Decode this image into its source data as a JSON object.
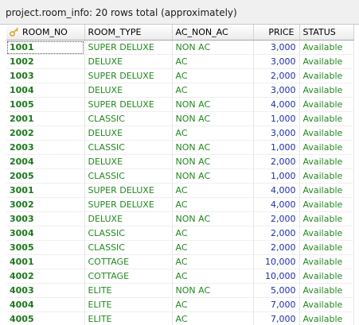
{
  "window": {
    "title": "project.room_info: 20 rows total (approximately)"
  },
  "grid": {
    "columns": [
      {
        "key": "room_no",
        "label": "ROOM_NO",
        "icon": "key-icon"
      },
      {
        "key": "room_type",
        "label": "ROOM_TYPE"
      },
      {
        "key": "ac_non_ac",
        "label": "AC_NON_AC"
      },
      {
        "key": "price",
        "label": "PRICE"
      },
      {
        "key": "status",
        "label": "STATUS"
      }
    ],
    "rows": [
      {
        "room_no": "1001",
        "room_type": "SUPER DELUXE",
        "ac_non_ac": "NON AC",
        "price": "3,000",
        "status": "Available"
      },
      {
        "room_no": "1002",
        "room_type": "DELUXE",
        "ac_non_ac": "AC",
        "price": "3,000",
        "status": "Available"
      },
      {
        "room_no": "1003",
        "room_type": "SUPER DELUXE",
        "ac_non_ac": "AC",
        "price": "2,000",
        "status": "Available"
      },
      {
        "room_no": "1004",
        "room_type": "DELUXE",
        "ac_non_ac": "AC",
        "price": "3,000",
        "status": "Available"
      },
      {
        "room_no": "1005",
        "room_type": "SUPER DELUXE",
        "ac_non_ac": "NON AC",
        "price": "4,000",
        "status": "Available"
      },
      {
        "room_no": "2001",
        "room_type": "CLASSIC",
        "ac_non_ac": "NON AC",
        "price": "1,000",
        "status": "Available"
      },
      {
        "room_no": "2002",
        "room_type": "DELUXE",
        "ac_non_ac": "AC",
        "price": "3,000",
        "status": "Available"
      },
      {
        "room_no": "2003",
        "room_type": "CLASSIC",
        "ac_non_ac": "NON AC",
        "price": "1,000",
        "status": "Available"
      },
      {
        "room_no": "2004",
        "room_type": "DELUXE",
        "ac_non_ac": "NON AC",
        "price": "2,000",
        "status": "Available"
      },
      {
        "room_no": "2005",
        "room_type": "CLASSIC",
        "ac_non_ac": "NON AC",
        "price": "1,000",
        "status": "Available"
      },
      {
        "room_no": "3001",
        "room_type": "SUPER DELUXE",
        "ac_non_ac": "AC",
        "price": "4,000",
        "status": "Available"
      },
      {
        "room_no": "3002",
        "room_type": "SUPER DELUXE",
        "ac_non_ac": "AC",
        "price": "4,000",
        "status": "Available"
      },
      {
        "room_no": "3003",
        "room_type": "DELUXE",
        "ac_non_ac": "NON AC",
        "price": "2,000",
        "status": "Available"
      },
      {
        "room_no": "3004",
        "room_type": "CLASSIC",
        "ac_non_ac": "AC",
        "price": "2,000",
        "status": "Available"
      },
      {
        "room_no": "3005",
        "room_type": "CLASSIC",
        "ac_non_ac": "AC",
        "price": "2,000",
        "status": "Available"
      },
      {
        "room_no": "4001",
        "room_type": "COTTAGE",
        "ac_non_ac": "AC",
        "price": "10,000",
        "status": "Available"
      },
      {
        "room_no": "4002",
        "room_type": "COTTAGE",
        "ac_non_ac": "AC",
        "price": "10,000",
        "status": "Available"
      },
      {
        "room_no": "4003",
        "room_type": "ELITE",
        "ac_non_ac": "NON AC",
        "price": "5,000",
        "status": "Available"
      },
      {
        "room_no": "4004",
        "room_type": "ELITE",
        "ac_non_ac": "AC",
        "price": "7,000",
        "status": "Available"
      },
      {
        "room_no": "4005",
        "room_type": "ELITE",
        "ac_non_ac": "AC",
        "price": "7,000",
        "status": "Available"
      }
    ]
  },
  "colors": {
    "id_text": "#1b7a1b",
    "text": "#22881f",
    "number": "#1c2fa8",
    "key_icon": "#d9a520"
  }
}
